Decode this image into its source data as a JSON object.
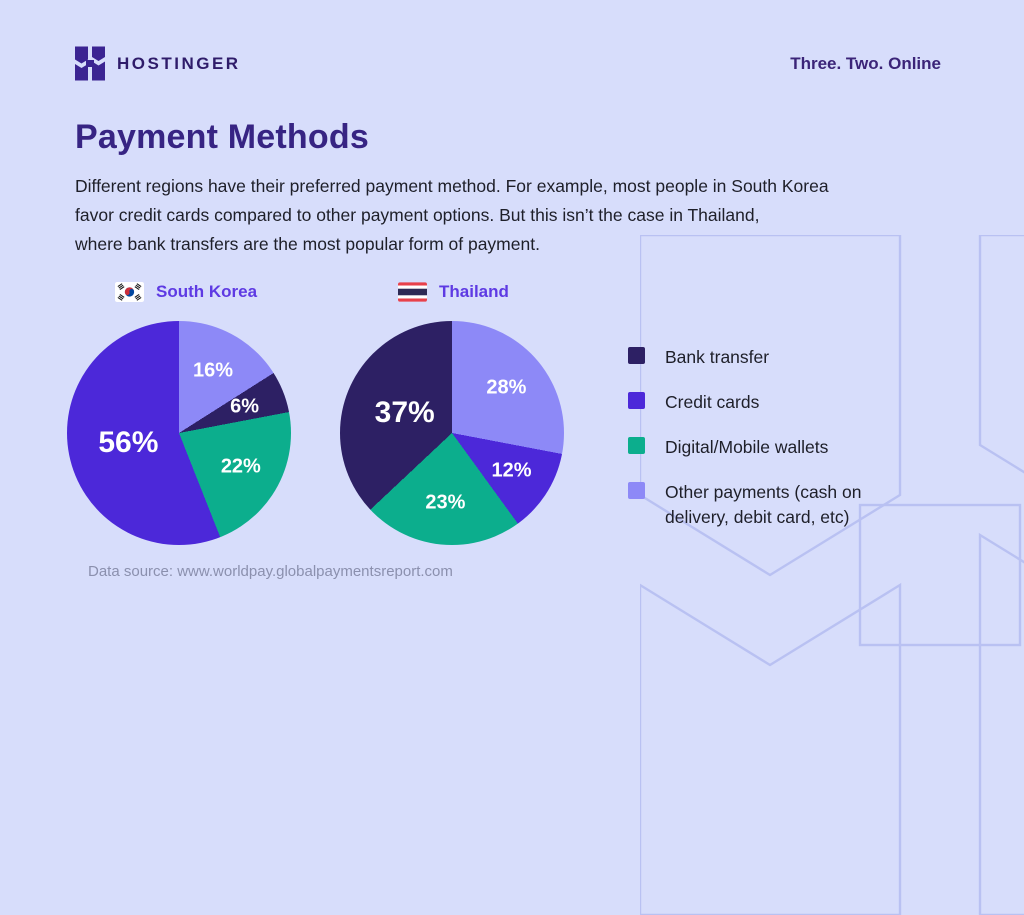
{
  "header": {
    "brand": "HOSTINGER",
    "tagline": "Three. Two. Online"
  },
  "title": "Payment Methods",
  "intro_lines": [
    "Different regions have their preferred payment method. For example, most people in South Korea",
    "favor credit cards compared to other payment options. But this isn’t the case in Thailand,",
    "where bank transfers are the most popular form of payment."
  ],
  "colors": {
    "background": "#d7ddfb",
    "heading": "#372483",
    "chart_title": "#5e3ae3",
    "bank_transfer": "#2d2064",
    "credit_cards": "#4c28d9",
    "digital_wallets": "#0cae8d",
    "other_payments": "#8d89f7"
  },
  "chart_data": [
    {
      "type": "pie",
      "title": "South Korea",
      "flag": "south-korea",
      "direction": "clockwise-from-top",
      "segments": [
        {
          "label": "Other payments",
          "value": 16,
          "color_key": "other_payments",
          "data_label": "16%"
        },
        {
          "label": "Bank transfer",
          "value": 6,
          "color_key": "bank_transfer",
          "data_label": "6%"
        },
        {
          "label": "Digital/Mobile wallets",
          "value": 22,
          "color_key": "digital_wallets",
          "data_label": "22%"
        },
        {
          "label": "Credit cards",
          "value": 56,
          "color_key": "credit_cards",
          "data_label": "56%"
        }
      ]
    },
    {
      "type": "pie",
      "title": "Thailand",
      "flag": "thailand",
      "direction": "clockwise-from-top",
      "segments": [
        {
          "label": "Other payments",
          "value": 28,
          "color_key": "other_payments",
          "data_label": "28%"
        },
        {
          "label": "Credit cards",
          "value": 12,
          "color_key": "credit_cards",
          "data_label": "12%"
        },
        {
          "label": "Digital/Mobile wallets",
          "value": 23,
          "color_key": "digital_wallets",
          "data_label": "23%"
        },
        {
          "label": "Bank transfer",
          "value": 37,
          "color_key": "bank_transfer",
          "data_label": "37%"
        }
      ]
    }
  ],
  "legend": [
    {
      "label": "Bank transfer",
      "color_key": "bank_transfer"
    },
    {
      "label": "Credit cards",
      "color_key": "credit_cards"
    },
    {
      "label": "Digital/Mobile wallets",
      "color_key": "digital_wallets"
    },
    {
      "label": "Other payments (cash on delivery, debit card, etc)",
      "color_key": "other_payments"
    }
  ],
  "footer": {
    "source": "Data source: www.worldpay.globalpaymentsreport.com"
  }
}
